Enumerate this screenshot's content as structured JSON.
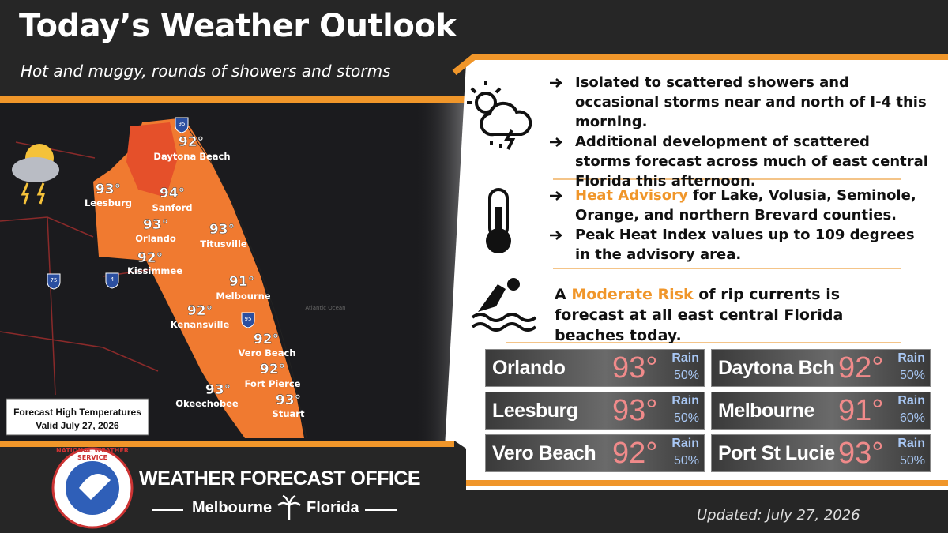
{
  "header": {
    "title": "Today’s Weather Outlook",
    "subtitle": "Hot and muggy, rounds of showers and storms"
  },
  "map": {
    "cities": [
      {
        "name": "Daytona Beach",
        "temp": "92°"
      },
      {
        "name": "Leesburg",
        "temp": "93°"
      },
      {
        "name": "Sanford",
        "temp": "94°"
      },
      {
        "name": "Orlando",
        "temp": "93°"
      },
      {
        "name": "Titusville",
        "temp": "93°"
      },
      {
        "name": "Kissimmee",
        "temp": "92°"
      },
      {
        "name": "Melbourne",
        "temp": "91°"
      },
      {
        "name": "Kenansville",
        "temp": "92°"
      },
      {
        "name": "Vero Beach",
        "temp": "92°"
      },
      {
        "name": "Fort Pierce",
        "temp": "92°"
      },
      {
        "name": "Okeechobee",
        "temp": "93°"
      },
      {
        "name": "Stuart",
        "temp": "93°"
      }
    ],
    "shields": [
      "95",
      "75",
      "4",
      "95"
    ],
    "ocean_label": "Atlantic Ocean",
    "legend": {
      "line1": "Forecast High Temperatures",
      "line2": "Valid July 27, 2026"
    }
  },
  "sections": [
    {
      "bullets": [
        [
          "Isolated to scattered showers and occasional storms near and north of I-4 this morning."
        ],
        [
          "Additional development of scattered storms forecast across much of east central Florida this afternoon."
        ]
      ]
    },
    {
      "bullets": [
        [
          "Heat Advisory",
          " for Lake, Volusia, Seminole, Orange, and northern Brevard counties."
        ],
        [
          "Peak Heat Index values up to 109 degrees in the advisory area."
        ]
      ]
    },
    {
      "text": [
        "A ",
        "Moderate Risk",
        " of rip currents is forecast at all east central Florida beaches today."
      ]
    }
  ],
  "cards": [
    {
      "city": "Orlando",
      "temp": "93°",
      "rain_label": "Rain",
      "rain": "50%"
    },
    {
      "city": "Daytona Bch",
      "temp": "92°",
      "rain_label": "Rain",
      "rain": "50%"
    },
    {
      "city": "Leesburg",
      "temp": "93°",
      "rain_label": "Rain",
      "rain": "50%"
    },
    {
      "city": "Melbourne",
      "temp": "91°",
      "rain_label": "Rain",
      "rain": "60%"
    },
    {
      "city": "Vero Beach",
      "temp": "92°",
      "rain_label": "Rain",
      "rain": "50%"
    },
    {
      "city": "Port St Lucie",
      "temp": "93°",
      "rain_label": "Rain",
      "rain": "50%"
    }
  ],
  "footer": {
    "logo_text": "NATIONAL WEATHER SERVICE",
    "office": "WEATHER FORECAST OFFICE",
    "city": "Melbourne",
    "state": "Florida",
    "updated": "Updated: July 27, 2026"
  }
}
